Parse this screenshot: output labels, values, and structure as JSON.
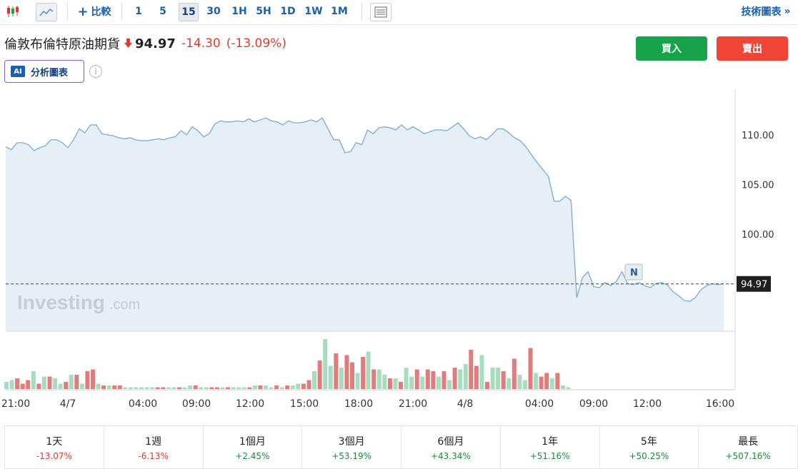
{
  "toolbar": {
    "compare_label": "比較",
    "intervals": [
      "1",
      "5",
      "15",
      "30",
      "1H",
      "5H",
      "1D",
      "1W",
      "1M"
    ],
    "active_interval": "15",
    "tech_chart_label": "技術圖表",
    "tech_chart_chevron": "»"
  },
  "instrument": {
    "name": "倫敦布倫特原油期貨",
    "price": "94.97",
    "change": "-14.30",
    "change_pct": "(-13.09%)",
    "direction": "down"
  },
  "ai_button": {
    "logo": "AI",
    "label": "分析圖表"
  },
  "info_icon": "i",
  "actions": {
    "buy_label": "買入",
    "sell_label": "賣出"
  },
  "colors": {
    "up": "#16a34a",
    "down": "#f04437",
    "line": "#7fb0d8",
    "fill": "#e6eef6",
    "vol_up": "#a8dcbf",
    "vol_down": "#e27c7c"
  },
  "chart_data": {
    "type": "area",
    "y_ticks": [
      "110.00",
      "105.00",
      "100.00"
    ],
    "ylim": [
      90.5,
      115.5
    ],
    "last_price_label": "94.97",
    "last_price": 94.97,
    "marker_label": "N",
    "watermark": "Investing",
    "watermark_suffix": ".com",
    "x_ticks": [
      "21:00",
      "4/7",
      "04:00",
      "09:00",
      "12:00",
      "15:00",
      "18:00",
      "21:00",
      "4/8",
      "04:00",
      "09:00",
      "12:00",
      "16:00"
    ],
    "price_series": [
      108.8,
      108.5,
      109.2,
      109.2,
      109.0,
      108.4,
      108.7,
      108.9,
      109.5,
      109.5,
      109.2,
      108.7,
      109.5,
      110.6,
      110.2,
      111.0,
      111.0,
      110.1,
      110.0,
      109.9,
      109.7,
      109.6,
      109.7,
      109.5,
      109.4,
      109.4,
      109.5,
      109.6,
      109.5,
      109.7,
      109.8,
      110.4,
      110.0,
      110.8,
      110.4,
      109.8,
      110.1,
      111.1,
      111.4,
      111.3,
      111.3,
      111.4,
      111.3,
      111.6,
      111.3,
      111.5,
      111.7,
      111.4,
      111.3,
      111.0,
      111.4,
      111.2,
      111.2,
      111.3,
      111.5,
      111.3,
      111.7,
      110.6,
      109.5,
      109.5,
      108.2,
      108.3,
      109.2,
      109.0,
      110.5,
      110.1,
      110.7,
      110.8,
      110.7,
      110.5,
      111.0,
      110.5,
      110.8,
      110.5,
      110.1,
      110.3,
      110.5,
      110.5,
      110.4,
      110.8,
      111.2,
      110.6,
      109.9,
      109.6,
      109.8,
      109.5,
      110.0,
      110.6,
      110.6,
      110.2,
      109.7,
      109.4,
      108.8,
      108.0,
      107.2,
      106.5,
      105.8,
      103.3,
      103.3,
      103.8,
      103.4,
      93.6,
      95.6,
      96.2,
      94.7,
      94.6,
      95.1,
      94.8,
      95.2,
      96.2,
      95.0,
      94.9,
      95.1,
      94.8,
      94.6,
      95.0,
      95.1,
      94.9,
      94.2,
      93.8,
      93.3,
      93.2,
      93.6,
      94.4,
      94.8,
      95.0,
      94.9,
      95.0
    ],
    "volume_series": [
      {
        "v": 4,
        "c": "up"
      },
      {
        "v": 5,
        "c": "up"
      },
      {
        "v": 6,
        "c": "down"
      },
      {
        "v": 3,
        "c": "down"
      },
      {
        "v": 5,
        "c": "down"
      },
      {
        "v": 10,
        "c": "up"
      },
      {
        "v": 3,
        "c": "down"
      },
      {
        "v": 7,
        "c": "up"
      },
      {
        "v": 7,
        "c": "down"
      },
      {
        "v": 6,
        "c": "up"
      },
      {
        "v": 3,
        "c": "up"
      },
      {
        "v": 4,
        "c": "down"
      },
      {
        "v": 8,
        "c": "up"
      },
      {
        "v": 8,
        "c": "down"
      },
      {
        "v": 3,
        "c": "up"
      },
      {
        "v": 10,
        "c": "down"
      },
      {
        "v": 11,
        "c": "down"
      },
      {
        "v": 3,
        "c": "up"
      },
      {
        "v": 2,
        "c": "down"
      },
      {
        "v": 2,
        "c": "up"
      },
      {
        "v": 2,
        "c": "down"
      },
      {
        "v": 2,
        "c": "down"
      },
      {
        "v": 1,
        "c": "up"
      },
      {
        "v": 1,
        "c": "up"
      },
      {
        "v": 1,
        "c": "up"
      },
      {
        "v": 1,
        "c": "up"
      },
      {
        "v": 1,
        "c": "up"
      },
      {
        "v": 1,
        "c": "up"
      },
      {
        "v": 1,
        "c": "down"
      },
      {
        "v": 1,
        "c": "down"
      },
      {
        "v": 1,
        "c": "up"
      },
      {
        "v": 1,
        "c": "up"
      },
      {
        "v": 1,
        "c": "down"
      },
      {
        "v": 1,
        "c": "up"
      },
      {
        "v": 2,
        "c": "up"
      },
      {
        "v": 2,
        "c": "down"
      },
      {
        "v": 1,
        "c": "up"
      },
      {
        "v": 1,
        "c": "up"
      },
      {
        "v": 1,
        "c": "down"
      },
      {
        "v": 1,
        "c": "down"
      },
      {
        "v": 1,
        "c": "up"
      },
      {
        "v": 1,
        "c": "down"
      },
      {
        "v": 1,
        "c": "up"
      },
      {
        "v": 1,
        "c": "up"
      },
      {
        "v": 1,
        "c": "up"
      },
      {
        "v": 1,
        "c": "down"
      },
      {
        "v": 2,
        "c": "up"
      },
      {
        "v": 2,
        "c": "down"
      },
      {
        "v": 2,
        "c": "up"
      },
      {
        "v": 1,
        "c": "up"
      },
      {
        "v": 2,
        "c": "down"
      },
      {
        "v": 1,
        "c": "up"
      },
      {
        "v": 2,
        "c": "down"
      },
      {
        "v": 2,
        "c": "up"
      },
      {
        "v": 3,
        "c": "up"
      },
      {
        "v": 3,
        "c": "down"
      },
      {
        "v": 5,
        "c": "down"
      },
      {
        "v": 10,
        "c": "up"
      },
      {
        "v": 16,
        "c": "down"
      },
      {
        "v": 28,
        "c": "up"
      },
      {
        "v": 13,
        "c": "up"
      },
      {
        "v": 20,
        "c": "down"
      },
      {
        "v": 12,
        "c": "up"
      },
      {
        "v": 19,
        "c": "down"
      },
      {
        "v": 15,
        "c": "down"
      },
      {
        "v": 9,
        "c": "up"
      },
      {
        "v": 18,
        "c": "down"
      },
      {
        "v": 21,
        "c": "up"
      },
      {
        "v": 11,
        "c": "down"
      },
      {
        "v": 11,
        "c": "up"
      },
      {
        "v": 8,
        "c": "up"
      },
      {
        "v": 6,
        "c": "down"
      },
      {
        "v": 6,
        "c": "up"
      },
      {
        "v": 4,
        "c": "down"
      },
      {
        "v": 12,
        "c": "up"
      },
      {
        "v": 7,
        "c": "up"
      },
      {
        "v": 11,
        "c": "down"
      },
      {
        "v": 7,
        "c": "up"
      },
      {
        "v": 11,
        "c": "down"
      },
      {
        "v": 10,
        "c": "down"
      },
      {
        "v": 7,
        "c": "up"
      },
      {
        "v": 10,
        "c": "down"
      },
      {
        "v": 5,
        "c": "up"
      },
      {
        "v": 12,
        "c": "down"
      },
      {
        "v": 11,
        "c": "up"
      },
      {
        "v": 14,
        "c": "up"
      },
      {
        "v": 22,
        "c": "down"
      },
      {
        "v": 13,
        "c": "down"
      },
      {
        "v": 19,
        "c": "up"
      },
      {
        "v": 4,
        "c": "down"
      },
      {
        "v": 12,
        "c": "up"
      },
      {
        "v": 12,
        "c": "up"
      },
      {
        "v": 10,
        "c": "down"
      },
      {
        "v": 6,
        "c": "up"
      },
      {
        "v": 17,
        "c": "down"
      },
      {
        "v": 8,
        "c": "up"
      },
      {
        "v": 5,
        "c": "up"
      },
      {
        "v": 23,
        "c": "down"
      },
      {
        "v": 9,
        "c": "up"
      },
      {
        "v": 7,
        "c": "down"
      },
      {
        "v": 9,
        "c": "down"
      },
      {
        "v": 6,
        "c": "up"
      },
      {
        "v": 9,
        "c": "down"
      },
      {
        "v": 2,
        "c": "up"
      },
      {
        "v": 1,
        "c": "up"
      }
    ]
  },
  "performance": [
    {
      "label": "1天",
      "value": "-13.07%",
      "dir": "down"
    },
    {
      "label": "1週",
      "value": "-6.13%",
      "dir": "down"
    },
    {
      "label": "1個月",
      "value": "+2.45%",
      "dir": "up"
    },
    {
      "label": "3個月",
      "value": "+53.19%",
      "dir": "up"
    },
    {
      "label": "6個月",
      "value": "+43.34%",
      "dir": "up"
    },
    {
      "label": "1年",
      "value": "+51.16%",
      "dir": "up"
    },
    {
      "label": "5年",
      "value": "+50.25%",
      "dir": "up"
    },
    {
      "label": "最長",
      "value": "+507.16%",
      "dir": "up"
    }
  ]
}
